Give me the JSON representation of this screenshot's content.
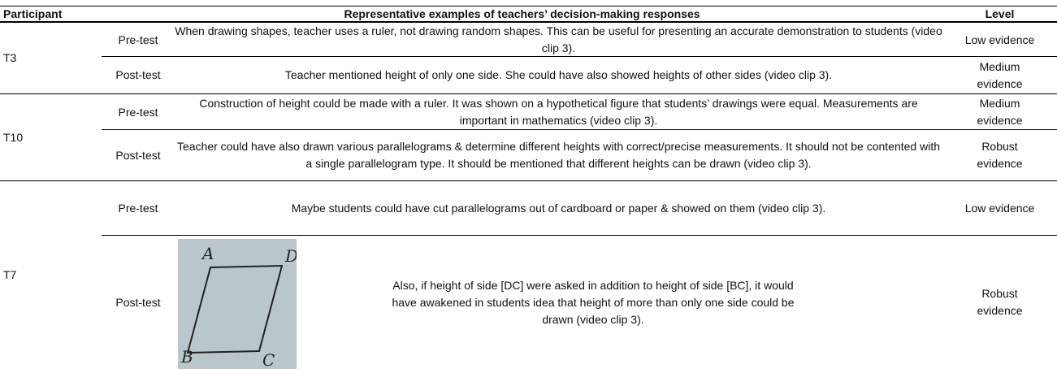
{
  "table": {
    "header": [
      "Participant",
      "Representative examples of teachers’ decision-making responses",
      "Level"
    ],
    "groups": [
      {
        "participant": "T3",
        "rows": [
          {
            "phase": "Pre-test",
            "response": "When drawing shapes, teacher uses a ruler, not drawing random shapes. This can be useful for presenting an accurate demonstration to students (video clip 3).",
            "level": "Low evidence"
          },
          {
            "phase": "Post-test",
            "response": "Teacher mentioned height of only one side. She could have also showed heights of other sides (video clip 3).",
            "level": "Medium evidence"
          }
        ]
      },
      {
        "participant": "T10",
        "rows": [
          {
            "phase": "Pre-test",
            "response": "Construction of height could be made with a ruler. It was shown on a hypothetical figure that students’ drawings were equal. Measurements are important in mathematics (video clip 3).",
            "level": "Medium evidence"
          },
          {
            "phase": "Post-test",
            "response": "Teacher could have also drawn various parallelograms & determine different heights with correct/precise measurements. It should not be contented with a single parallelogram type. It should be mentioned that different heights can be drawn (video clip 3).",
            "level": "Robust evidence"
          }
        ]
      },
      {
        "participant": "T7",
        "rows": [
          {
            "phase": "Pre-test",
            "response": "Maybe students could have cut parallelograms out of cardboard or paper & showed on them (video clip 3).",
            "level": "Low evidence"
          },
          {
            "phase": "Post-test",
            "response": "Also, if height of side [DC] were asked in addition to height of side [BC], it would have awakened in students idea that height of more than only one side could be drawn (video clip 3).",
            "level": "Robust evidence",
            "figure_labels": [
              "A",
              "D",
              "B",
              "C"
            ]
          }
        ]
      }
    ]
  }
}
